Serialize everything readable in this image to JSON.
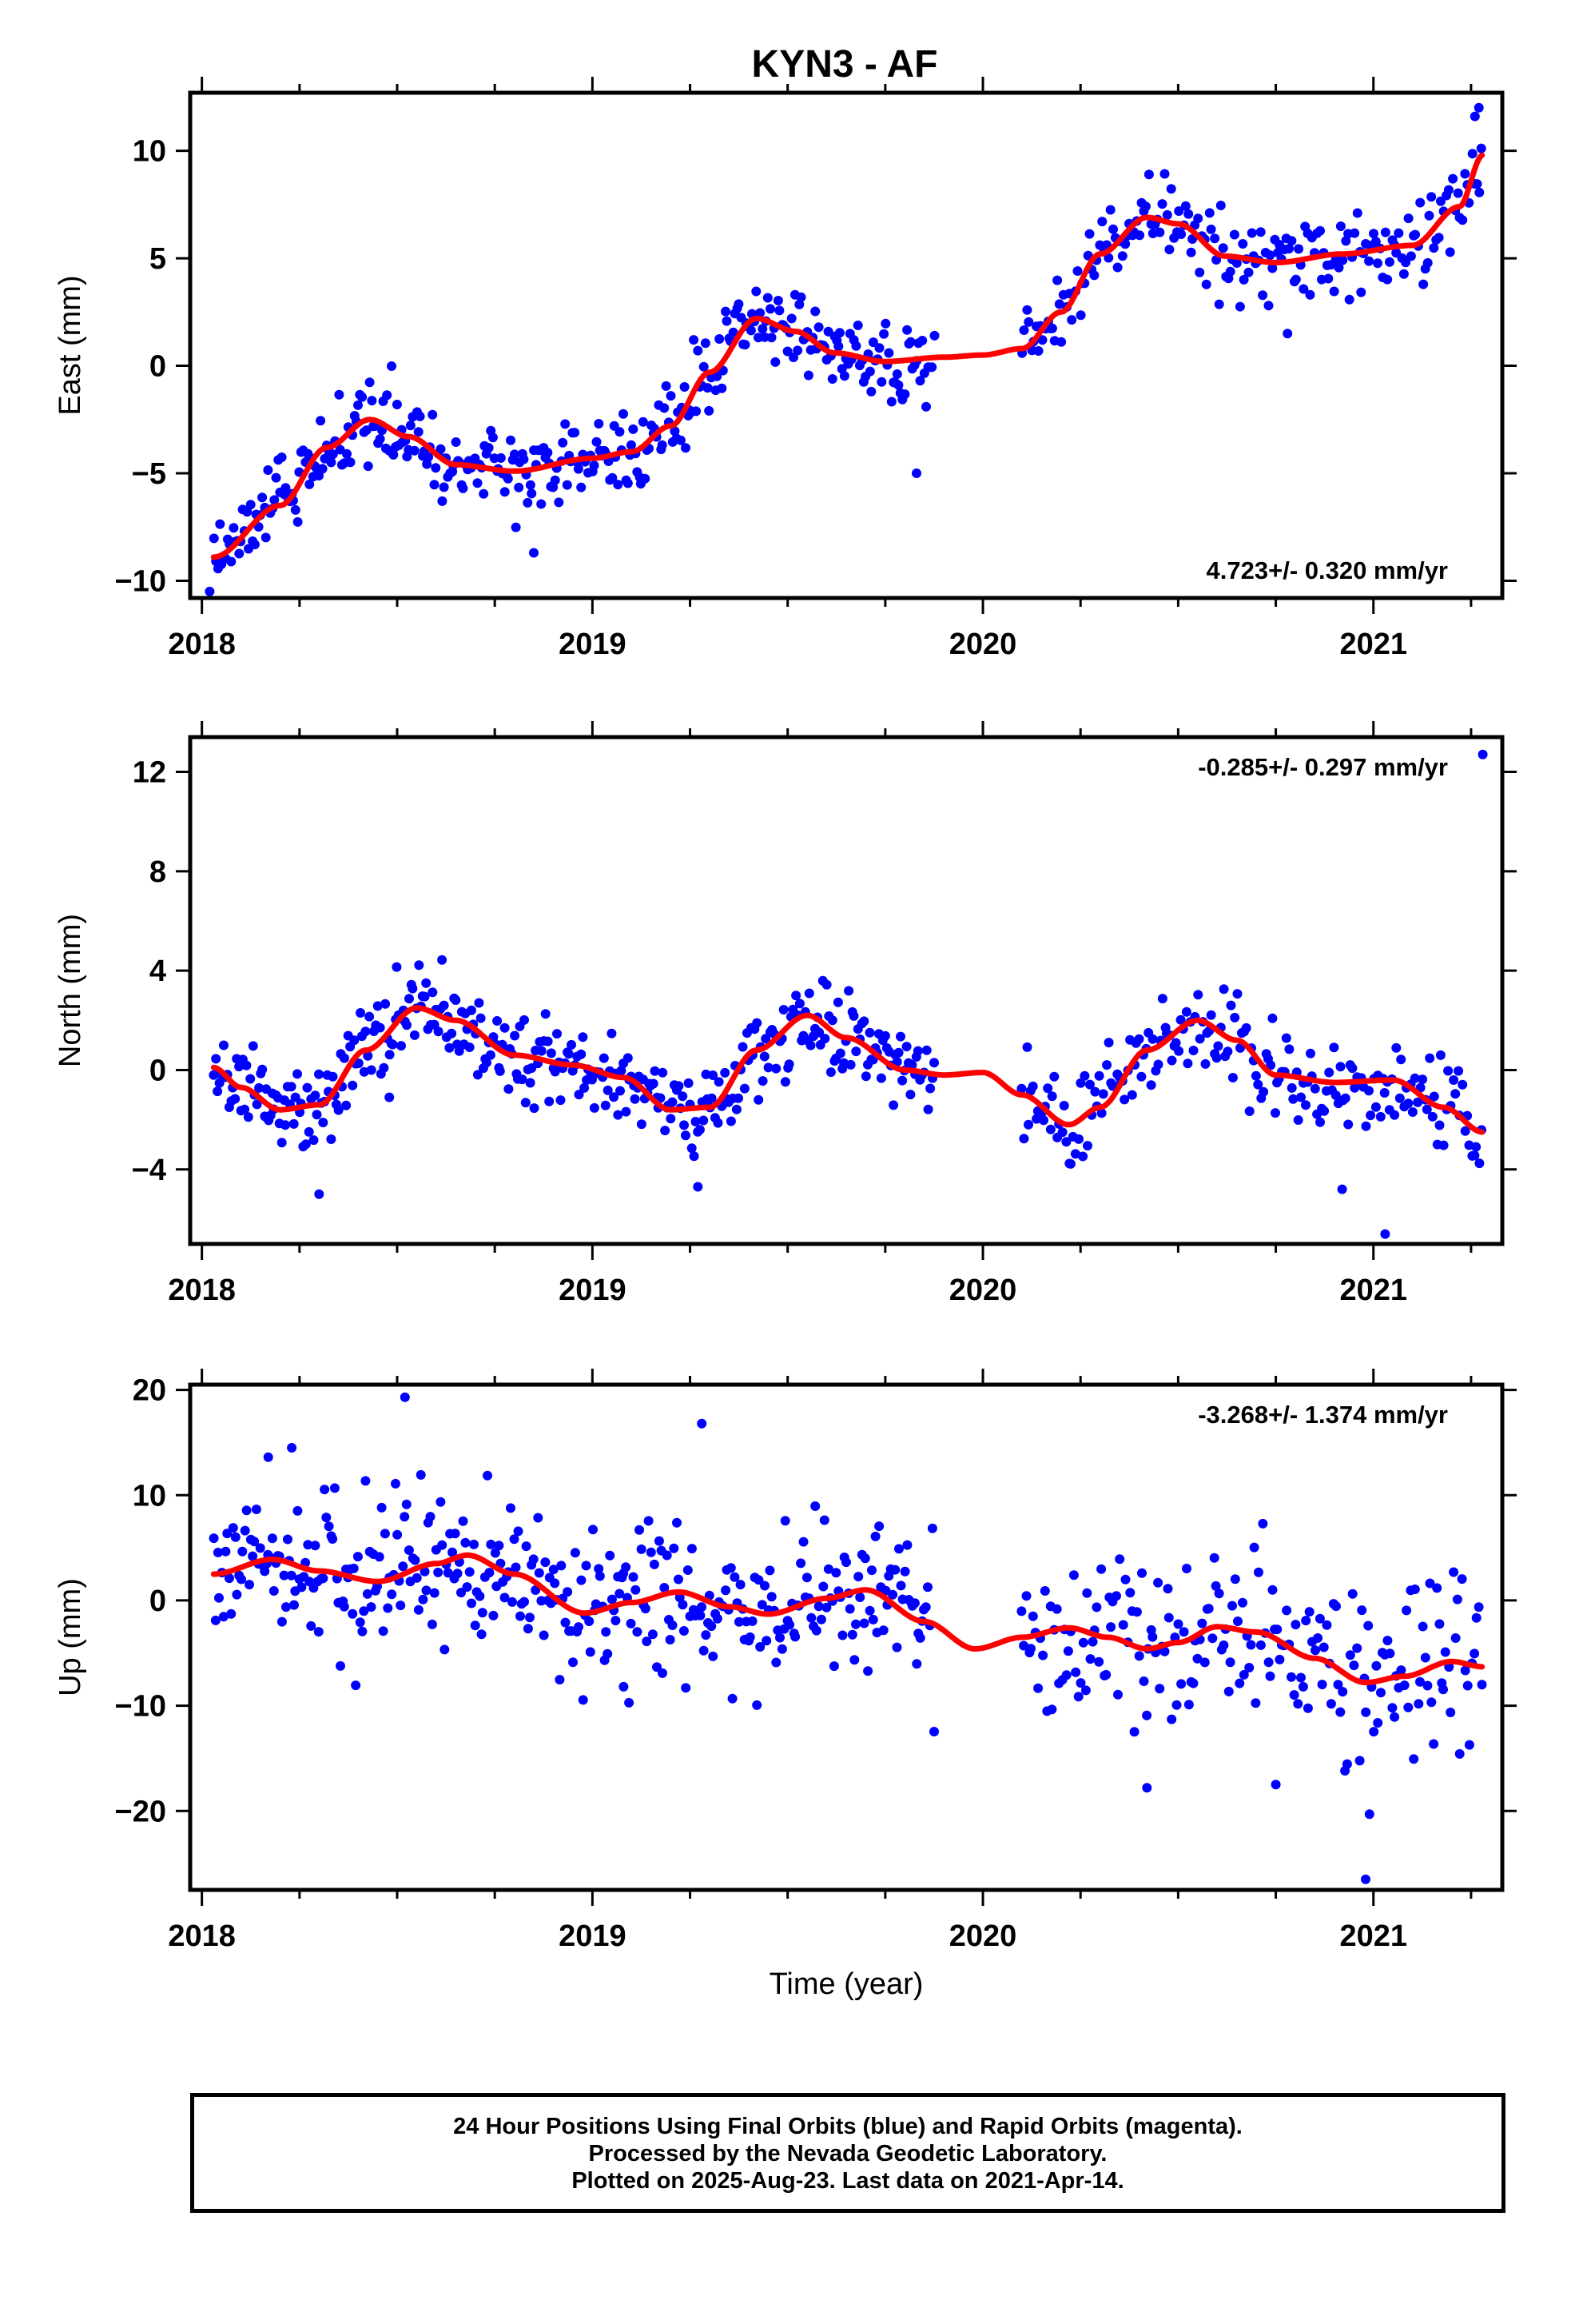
{
  "title": "KYN3 - AF",
  "colors": {
    "points": "#0000ff",
    "fit": "#ff0000",
    "axes": "#000000"
  },
  "chart_data": [
    {
      "type": "scatter",
      "ylabel": "East (mm)",
      "xlim": [
        2017.97,
        2021.33
      ],
      "ylim": [
        -10.8,
        12.7
      ],
      "x_ticks": [
        2018,
        2019,
        2020,
        2021
      ],
      "y_ticks": [
        -10,
        -5,
        0,
        5,
        10
      ],
      "rate_label": "4.723+/- 0.320 mm/yr",
      "rate_position": "bottom-right",
      "series": [
        {
          "type": "scatter",
          "color": "#0000ff",
          "sample_step": 0.005,
          "noise": 1.0,
          "trend": [
            [
              2018.03,
              -8.9
            ],
            [
              2018.2,
              -6.5
            ],
            [
              2018.32,
              -3.8
            ],
            [
              2018.43,
              -2.5
            ],
            [
              2018.53,
              -3.3
            ],
            [
              2018.65,
              -4.6
            ],
            [
              2018.8,
              -4.9
            ],
            [
              2019.0,
              -4.3
            ],
            [
              2019.1,
              -4.0
            ],
            [
              2019.2,
              -2.8
            ],
            [
              2019.3,
              -0.3
            ],
            [
              2019.42,
              2.2
            ],
            [
              2019.52,
              1.6
            ],
            [
              2019.62,
              0.6
            ],
            [
              2019.75,
              0.2
            ],
            [
              2019.88,
              0.4
            ]
          ],
          "outliers": [
            [
              2018.85,
              -8.7
            ],
            [
              2019.83,
              -5.0
            ],
            [
              2018.02,
              -10.5
            ]
          ]
        },
        {
          "type": "scatter",
          "color": "#0000ff",
          "sample_step": 0.006,
          "noise": 1.0,
          "trend": [
            [
              2020.1,
              0.8
            ],
            [
              2020.2,
              2.5
            ],
            [
              2020.3,
              5.2
            ],
            [
              2020.42,
              6.9
            ],
            [
              2020.5,
              6.6
            ],
            [
              2020.62,
              5.1
            ],
            [
              2020.75,
              4.8
            ],
            [
              2020.92,
              5.2
            ],
            [
              2021.1,
              5.6
            ],
            [
              2021.22,
              7.4
            ],
            [
              2021.28,
              9.8
            ]
          ],
          "outliers": [
            [
              2021.27,
              12.0
            ],
            [
              2021.26,
              11.6
            ],
            [
              2020.78,
              1.5
            ]
          ]
        }
      ],
      "fit": [
        [
          2018.03,
          -8.9
        ],
        [
          2018.2,
          -6.5
        ],
        [
          2018.32,
          -3.8
        ],
        [
          2018.43,
          -2.5
        ],
        [
          2018.53,
          -3.3
        ],
        [
          2018.65,
          -4.6
        ],
        [
          2018.8,
          -4.9
        ],
        [
          2019.0,
          -4.3
        ],
        [
          2019.1,
          -4.0
        ],
        [
          2019.2,
          -2.8
        ],
        [
          2019.3,
          -0.3
        ],
        [
          2019.42,
          2.2
        ],
        [
          2019.52,
          1.6
        ],
        [
          2019.62,
          0.6
        ],
        [
          2019.75,
          0.2
        ],
        [
          2019.9,
          0.4
        ],
        [
          2020.0,
          0.5
        ],
        [
          2020.1,
          0.8
        ],
        [
          2020.2,
          2.5
        ],
        [
          2020.3,
          5.2
        ],
        [
          2020.42,
          6.9
        ],
        [
          2020.5,
          6.6
        ],
        [
          2020.62,
          5.1
        ],
        [
          2020.75,
          4.8
        ],
        [
          2020.92,
          5.2
        ],
        [
          2021.1,
          5.6
        ],
        [
          2021.22,
          7.4
        ],
        [
          2021.28,
          9.8
        ]
      ]
    },
    {
      "type": "scatter",
      "ylabel": "North (mm)",
      "xlim": [
        2017.97,
        2021.33
      ],
      "ylim": [
        -7.0,
        13.4
      ],
      "x_ticks": [
        2018,
        2019,
        2020,
        2021
      ],
      "y_ticks": [
        -4,
        0,
        4,
        8,
        12
      ],
      "rate_label": "-0.285+/- 0.297 mm/yr",
      "rate_position": "top-right",
      "series": [
        {
          "type": "scatter",
          "color": "#0000ff",
          "sample_step": 0.005,
          "noise": 0.9,
          "trend": [
            [
              2018.03,
              0.1
            ],
            [
              2018.1,
              -0.7
            ],
            [
              2018.2,
              -1.6
            ],
            [
              2018.3,
              -1.4
            ],
            [
              2018.42,
              0.8
            ],
            [
              2018.55,
              2.5
            ],
            [
              2018.65,
              2.0
            ],
            [
              2018.8,
              0.6
            ],
            [
              2018.95,
              0.2
            ],
            [
              2019.08,
              -0.3
            ],
            [
              2019.2,
              -1.6
            ],
            [
              2019.3,
              -1.5
            ],
            [
              2019.42,
              0.8
            ],
            [
              2019.55,
              2.2
            ],
            [
              2019.65,
              1.3
            ],
            [
              2019.8,
              0.0
            ],
            [
              2019.88,
              -0.2
            ]
          ],
          "outliers": [
            [
              2018.48,
              -1.1
            ],
            [
              2018.3,
              -5.0
            ],
            [
              2019.27,
              -4.7
            ]
          ]
        },
        {
          "type": "scatter",
          "color": "#0000ff",
          "sample_step": 0.006,
          "noise": 1.0,
          "trend": [
            [
              2020.1,
              -1.0
            ],
            [
              2020.22,
              -2.2
            ],
            [
              2020.3,
              -1.5
            ],
            [
              2020.42,
              0.8
            ],
            [
              2020.55,
              2.0
            ],
            [
              2020.65,
              1.2
            ],
            [
              2020.75,
              -0.2
            ],
            [
              2020.9,
              -0.5
            ],
            [
              2021.05,
              -0.4
            ],
            [
              2021.18,
              -1.5
            ],
            [
              2021.28,
              -2.5
            ]
          ],
          "outliers": [
            [
              2021.28,
              12.7
            ],
            [
              2021.03,
              -6.6
            ],
            [
              2020.92,
              -4.8
            ]
          ]
        }
      ],
      "fit": [
        [
          2018.03,
          0.1
        ],
        [
          2018.1,
          -0.7
        ],
        [
          2018.2,
          -1.6
        ],
        [
          2018.3,
          -1.4
        ],
        [
          2018.42,
          0.8
        ],
        [
          2018.55,
          2.5
        ],
        [
          2018.65,
          2.0
        ],
        [
          2018.8,
          0.6
        ],
        [
          2018.95,
          0.2
        ],
        [
          2019.08,
          -0.3
        ],
        [
          2019.2,
          -1.6
        ],
        [
          2019.3,
          -1.5
        ],
        [
          2019.42,
          0.8
        ],
        [
          2019.55,
          2.2
        ],
        [
          2019.65,
          1.3
        ],
        [
          2019.8,
          0.0
        ],
        [
          2019.9,
          -0.2
        ],
        [
          2020.0,
          -0.1
        ],
        [
          2020.1,
          -1.0
        ],
        [
          2020.22,
          -2.2
        ],
        [
          2020.3,
          -1.5
        ],
        [
          2020.42,
          0.8
        ],
        [
          2020.55,
          2.0
        ],
        [
          2020.65,
          1.2
        ],
        [
          2020.75,
          -0.2
        ],
        [
          2020.9,
          -0.5
        ],
        [
          2021.05,
          -0.4
        ],
        [
          2021.18,
          -1.5
        ],
        [
          2021.28,
          -2.5
        ]
      ]
    },
    {
      "type": "scatter",
      "ylabel": "Up (mm)",
      "xlabel": "Time (year)",
      "xlim": [
        2017.97,
        2021.33
      ],
      "ylim": [
        -27.5,
        20.5
      ],
      "x_ticks": [
        2018,
        2019,
        2020,
        2021
      ],
      "y_ticks": [
        -20,
        -10,
        0,
        10,
        20
      ],
      "rate_label": "-3.268+/- 1.374 mm/yr",
      "rate_position": "top-right",
      "series": [
        {
          "type": "scatter",
          "color": "#0000ff",
          "sample_step": 0.005,
          "noise": 3.8,
          "trend": [
            [
              2018.03,
              2.5
            ],
            [
              2018.18,
              3.9
            ],
            [
              2018.3,
              2.8
            ],
            [
              2018.45,
              1.8
            ],
            [
              2018.6,
              3.5
            ],
            [
              2018.68,
              4.3
            ],
            [
              2018.8,
              2.5
            ],
            [
              2018.98,
              -1.2
            ],
            [
              2019.1,
              -0.2
            ],
            [
              2019.22,
              0.8
            ],
            [
              2019.35,
              -0.6
            ],
            [
              2019.45,
              -1.3
            ],
            [
              2019.6,
              0.2
            ],
            [
              2019.7,
              1.0
            ],
            [
              2019.8,
              -0.5
            ],
            [
              2019.88,
              -2.5
            ]
          ],
          "outliers": [
            [
              2018.52,
              19.3
            ],
            [
              2019.28,
              16.8
            ],
            [
              2018.23,
              14.5
            ],
            [
              2018.17,
              13.6
            ],
            [
              2019.08,
              -8.2
            ]
          ]
        },
        {
          "type": "scatter",
          "color": "#0000ff",
          "sample_step": 0.006,
          "noise": 3.8,
          "trend": [
            [
              2020.1,
              -3.5
            ],
            [
              2020.22,
              -2.6
            ],
            [
              2020.32,
              -3.5
            ],
            [
              2020.42,
              -4.6
            ],
            [
              2020.5,
              -4.0
            ],
            [
              2020.6,
              -2.5
            ],
            [
              2020.7,
              -3.0
            ],
            [
              2020.85,
              -5.5
            ],
            [
              2020.98,
              -7.8
            ],
            [
              2021.08,
              -7.2
            ],
            [
              2021.2,
              -5.8
            ],
            [
              2021.28,
              -6.3
            ]
          ],
          "outliers": [
            [
              2020.98,
              -26.5
            ],
            [
              2020.42,
              -17.8
            ],
            [
              2020.75,
              -17.5
            ],
            [
              2020.99,
              -20.3
            ]
          ]
        }
      ],
      "fit": [
        [
          2018.03,
          2.5
        ],
        [
          2018.18,
          3.9
        ],
        [
          2018.3,
          2.8
        ],
        [
          2018.45,
          1.8
        ],
        [
          2018.6,
          3.5
        ],
        [
          2018.68,
          4.3
        ],
        [
          2018.8,
          2.5
        ],
        [
          2018.98,
          -1.2
        ],
        [
          2019.1,
          -0.2
        ],
        [
          2019.22,
          0.8
        ],
        [
          2019.35,
          -0.6
        ],
        [
          2019.45,
          -1.3
        ],
        [
          2019.6,
          0.2
        ],
        [
          2019.7,
          1.0
        ],
        [
          2019.85,
          -2.0
        ],
        [
          2019.98,
          -4.6
        ],
        [
          2020.1,
          -3.5
        ],
        [
          2020.22,
          -2.6
        ],
        [
          2020.32,
          -3.5
        ],
        [
          2020.42,
          -4.6
        ],
        [
          2020.5,
          -4.0
        ],
        [
          2020.6,
          -2.5
        ],
        [
          2020.7,
          -3.0
        ],
        [
          2020.85,
          -5.5
        ],
        [
          2020.98,
          -7.8
        ],
        [
          2021.08,
          -7.2
        ],
        [
          2021.2,
          -5.8
        ],
        [
          2021.28,
          -6.3
        ]
      ]
    }
  ],
  "footer": {
    "line1": "24 Hour Positions Using Final Orbits (blue) and Rapid Orbits (magenta).",
    "line2": "Processed by the Nevada Geodetic Laboratory.",
    "line3": "Plotted on 2025-Aug-23. Last data on 2021-Apr-14."
  }
}
